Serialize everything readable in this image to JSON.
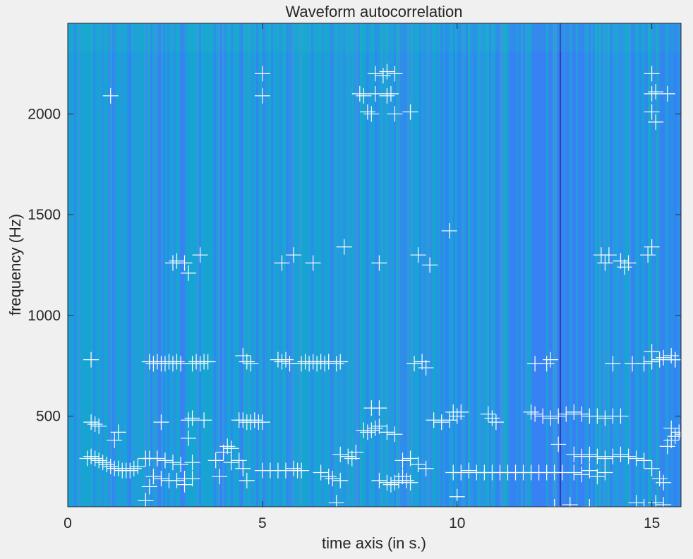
{
  "chart_data": {
    "type": "heatmap",
    "title": "Waveform autocorrelation",
    "xlabel": "time axis (in s.)",
    "ylabel": "frequency (Hz)",
    "xlim": [
      0,
      15.75
    ],
    "ylim": [
      50,
      2450
    ],
    "xticks": [
      0,
      5,
      10,
      15
    ],
    "yticks": [
      500,
      1000,
      1500,
      2000
    ],
    "colormap": "parula",
    "marker_color": "#ffffff",
    "marker_style": "plus",
    "background_base_color": "#2f8ee8",
    "markers": [
      [
        0.6,
        470
      ],
      [
        0.7,
        460
      ],
      [
        0.8,
        450
      ],
      [
        0.6,
        780
      ],
      [
        1.1,
        2090
      ],
      [
        1.3,
        420
      ],
      [
        1.2,
        380
      ],
      [
        0.5,
        290
      ],
      [
        0.6,
        300
      ],
      [
        0.7,
        290
      ],
      [
        0.8,
        280
      ],
      [
        0.9,
        270
      ],
      [
        1.0,
        260
      ],
      [
        1.1,
        250
      ],
      [
        1.2,
        240
      ],
      [
        1.3,
        240
      ],
      [
        1.4,
        230
      ],
      [
        1.5,
        230
      ],
      [
        1.6,
        230
      ],
      [
        1.7,
        240
      ],
      [
        1.8,
        250
      ],
      [
        2.0,
        80
      ],
      [
        2.1,
        150
      ],
      [
        2.4,
        470
      ],
      [
        2.1,
        770
      ],
      [
        2.2,
        760
      ],
      [
        2.3,
        770
      ],
      [
        2.4,
        760
      ],
      [
        2.5,
        760
      ],
      [
        2.6,
        770
      ],
      [
        2.7,
        760
      ],
      [
        2.8,
        770
      ],
      [
        2.9,
        760
      ],
      [
        2.0,
        290
      ],
      [
        2.1,
        290
      ],
      [
        2.3,
        290
      ],
      [
        2.5,
        280
      ],
      [
        2.7,
        270
      ],
      [
        2.2,
        200
      ],
      [
        2.4,
        190
      ],
      [
        2.6,
        180
      ],
      [
        2.8,
        180
      ],
      [
        3.0,
        190
      ],
      [
        3.2,
        190
      ],
      [
        3.0,
        160
      ],
      [
        2.9,
        260
      ],
      [
        3.2,
        270
      ],
      [
        2.7,
        1260
      ],
      [
        2.8,
        1270
      ],
      [
        3.0,
        1260
      ],
      [
        3.1,
        1210
      ],
      [
        3.4,
        1300
      ],
      [
        3.1,
        480
      ],
      [
        3.2,
        490
      ],
      [
        3.5,
        480
      ],
      [
        3.1,
        390
      ],
      [
        3.2,
        760
      ],
      [
        3.3,
        770
      ],
      [
        3.4,
        760
      ],
      [
        3.5,
        770
      ],
      [
        3.6,
        770
      ],
      [
        3.8,
        280
      ],
      [
        4.0,
        320
      ],
      [
        4.1,
        350
      ],
      [
        4.2,
        340
      ],
      [
        3.9,
        200
      ],
      [
        4.2,
        270
      ],
      [
        4.4,
        280
      ],
      [
        4.5,
        240
      ],
      [
        4.6,
        180
      ],
      [
        4.4,
        480
      ],
      [
        4.5,
        480
      ],
      [
        4.6,
        470
      ],
      [
        4.7,
        470
      ],
      [
        4.8,
        480
      ],
      [
        4.9,
        470
      ],
      [
        5.0,
        470
      ],
      [
        4.5,
        800
      ],
      [
        4.6,
        770
      ],
      [
        4.7,
        760
      ],
      [
        5.0,
        2200
      ],
      [
        5.0,
        2090
      ],
      [
        5.0,
        230
      ],
      [
        5.2,
        230
      ],
      [
        5.4,
        230
      ],
      [
        5.6,
        230
      ],
      [
        5.8,
        240
      ],
      [
        5.9,
        230
      ],
      [
        6.0,
        230
      ],
      [
        5.4,
        780
      ],
      [
        5.5,
        770
      ],
      [
        5.6,
        780
      ],
      [
        5.7,
        760
      ],
      [
        5.5,
        1260
      ],
      [
        5.8,
        1300
      ],
      [
        6.0,
        760
      ],
      [
        6.1,
        770
      ],
      [
        6.2,
        760
      ],
      [
        6.3,
        770
      ],
      [
        6.4,
        760
      ],
      [
        6.5,
        770
      ],
      [
        6.6,
        760
      ],
      [
        6.7,
        770
      ],
      [
        6.9,
        760
      ],
      [
        7.0,
        770
      ],
      [
        6.3,
        1260
      ],
      [
        6.5,
        220
      ],
      [
        6.7,
        200
      ],
      [
        6.8,
        190
      ],
      [
        7.0,
        180
      ],
      [
        6.9,
        70
      ],
      [
        7.0,
        310
      ],
      [
        7.2,
        300
      ],
      [
        7.3,
        290
      ],
      [
        7.4,
        320
      ],
      [
        7.1,
        1340
      ],
      [
        7.5,
        2100
      ],
      [
        7.6,
        2090
      ],
      [
        7.7,
        2010
      ],
      [
        7.8,
        2000
      ],
      [
        7.9,
        2100
      ],
      [
        8.2,
        2090
      ],
      [
        8.3,
        2100
      ],
      [
        8.4,
        2000
      ],
      [
        7.9,
        2200
      ],
      [
        8.1,
        2190
      ],
      [
        8.2,
        2210
      ],
      [
        8.4,
        2200
      ],
      [
        8.8,
        2010
      ],
      [
        7.6,
        430
      ],
      [
        7.7,
        420
      ],
      [
        7.8,
        430
      ],
      [
        7.9,
        440
      ],
      [
        8.0,
        450
      ],
      [
        8.2,
        420
      ],
      [
        8.4,
        410
      ],
      [
        7.8,
        540
      ],
      [
        8.0,
        540
      ],
      [
        8.0,
        1260
      ],
      [
        8.0,
        180
      ],
      [
        8.2,
        170
      ],
      [
        8.3,
        160
      ],
      [
        8.4,
        170
      ],
      [
        8.5,
        180
      ],
      [
        8.6,
        200
      ],
      [
        8.7,
        180
      ],
      [
        8.8,
        170
      ],
      [
        8.6,
        280
      ],
      [
        8.8,
        290
      ],
      [
        9.0,
        260
      ],
      [
        9.2,
        240
      ],
      [
        8.9,
        760
      ],
      [
        9.1,
        770
      ],
      [
        9.2,
        740
      ],
      [
        9.3,
        1250
      ],
      [
        9.0,
        1300
      ],
      [
        9.4,
        480
      ],
      [
        9.6,
        470
      ],
      [
        9.8,
        480
      ],
      [
        9.9,
        520
      ],
      [
        10.0,
        500
      ],
      [
        10.1,
        520
      ],
      [
        9.8,
        1420
      ],
      [
        9.9,
        220
      ],
      [
        10.1,
        220
      ],
      [
        10.3,
        230
      ],
      [
        10.5,
        220
      ],
      [
        10.7,
        220
      ],
      [
        10.9,
        220
      ],
      [
        11.1,
        220
      ],
      [
        11.3,
        220
      ],
      [
        11.5,
        220
      ],
      [
        11.7,
        220
      ],
      [
        11.9,
        220
      ],
      [
        12.1,
        220
      ],
      [
        12.3,
        220
      ],
      [
        12.5,
        220
      ],
      [
        12.7,
        220
      ],
      [
        10.0,
        100
      ],
      [
        10.8,
        510
      ],
      [
        10.9,
        490
      ],
      [
        11.0,
        470
      ],
      [
        11.9,
        520
      ],
      [
        12.0,
        510
      ],
      [
        12.2,
        500
      ],
      [
        12.4,
        490
      ],
      [
        12.6,
        500
      ],
      [
        12.8,
        510
      ],
      [
        13.0,
        520
      ],
      [
        13.2,
        510
      ],
      [
        13.4,
        500
      ],
      [
        13.6,
        500
      ],
      [
        13.8,
        490
      ],
      [
        14.0,
        500
      ],
      [
        14.2,
        500
      ],
      [
        12.0,
        760
      ],
      [
        12.3,
        760
      ],
      [
        12.6,
        360
      ],
      [
        12.4,
        780
      ],
      [
        13.0,
        310
      ],
      [
        13.2,
        300
      ],
      [
        13.4,
        310
      ],
      [
        13.6,
        300
      ],
      [
        13.8,
        290
      ],
      [
        14.0,
        300
      ],
      [
        14.2,
        310
      ],
      [
        14.4,
        300
      ],
      [
        14.6,
        290
      ],
      [
        14.8,
        280
      ],
      [
        13.0,
        220
      ],
      [
        13.2,
        210
      ],
      [
        13.4,
        230
      ],
      [
        13.6,
        200
      ],
      [
        13.8,
        220
      ],
      [
        12.5,
        50
      ],
      [
        12.9,
        60
      ],
      [
        13.4,
        50
      ],
      [
        13.7,
        1300
      ],
      [
        13.9,
        1300
      ],
      [
        13.8,
        1260
      ],
      [
        14.2,
        1270
      ],
      [
        14.3,
        1240
      ],
      [
        14.4,
        1260
      ],
      [
        14.0,
        760
      ],
      [
        14.5,
        760
      ],
      [
        14.8,
        760
      ],
      [
        15.0,
        770
      ],
      [
        15.2,
        780
      ],
      [
        15.3,
        790
      ],
      [
        15.5,
        800
      ],
      [
        15.6,
        780
      ],
      [
        15.0,
        820
      ],
      [
        14.9,
        1300
      ],
      [
        15.0,
        1340
      ],
      [
        15.0,
        2200
      ],
      [
        15.0,
        2100
      ],
      [
        15.1,
        2110
      ],
      [
        15.0,
        2010
      ],
      [
        15.1,
        1960
      ],
      [
        15.4,
        2100
      ],
      [
        14.6,
        70
      ],
      [
        14.8,
        50
      ],
      [
        15.1,
        70
      ],
      [
        15.3,
        60
      ],
      [
        15.0,
        240
      ],
      [
        15.2,
        190
      ],
      [
        15.3,
        170
      ],
      [
        15.4,
        350
      ],
      [
        15.5,
        380
      ],
      [
        15.6,
        400
      ],
      [
        15.7,
        420
      ],
      [
        15.8,
        410
      ],
      [
        15.5,
        440
      ],
      [
        15.6,
        780
      ]
    ]
  }
}
